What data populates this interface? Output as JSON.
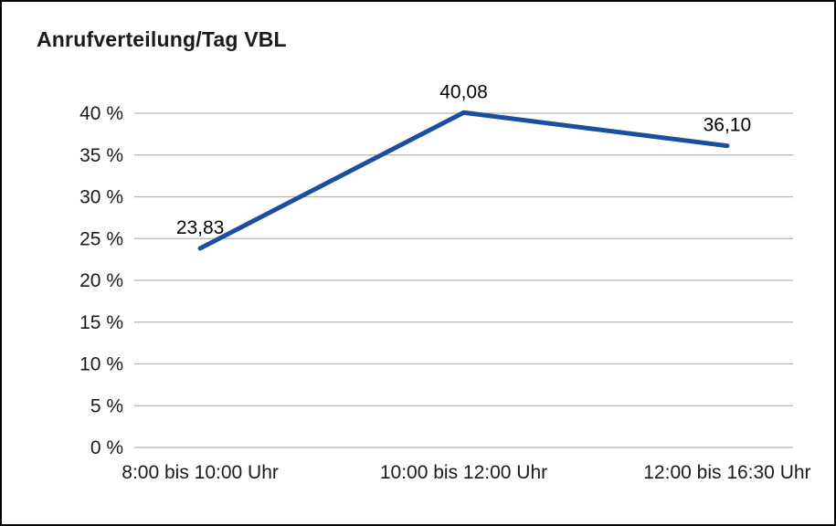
{
  "title": "Anrufverteilung/Tag VBL",
  "chart_data": {
    "type": "line",
    "title": "Anrufverteilung/Tag VBL",
    "categories": [
      "8:00 bis 10:00 Uhr",
      "10:00 bis 12:00 Uhr",
      "12:00 bis 16:30 Uhr"
    ],
    "series": [
      {
        "name": "Anrufverteilung/Tag VBL",
        "values": [
          23.83,
          40.08,
          36.1
        ]
      }
    ],
    "data_labels": [
      "23,83",
      "40,08",
      "36,10"
    ],
    "xlabel": "",
    "ylabel": "",
    "ylim": [
      0,
      40
    ],
    "ytick_step": 5,
    "ytick_labels": [
      "0 %",
      "5 %",
      "10 %",
      "15 %",
      "20 %",
      "25 %",
      "30 %",
      "35 %",
      "40 %"
    ],
    "grid": "horizontal-only",
    "legend_position": "none",
    "line_color": "#1b4f9e",
    "grid_color": "#b3b3b3",
    "text_color": "#1a1a1a",
    "data_label_color": "#000000",
    "background": "#ffffff"
  }
}
